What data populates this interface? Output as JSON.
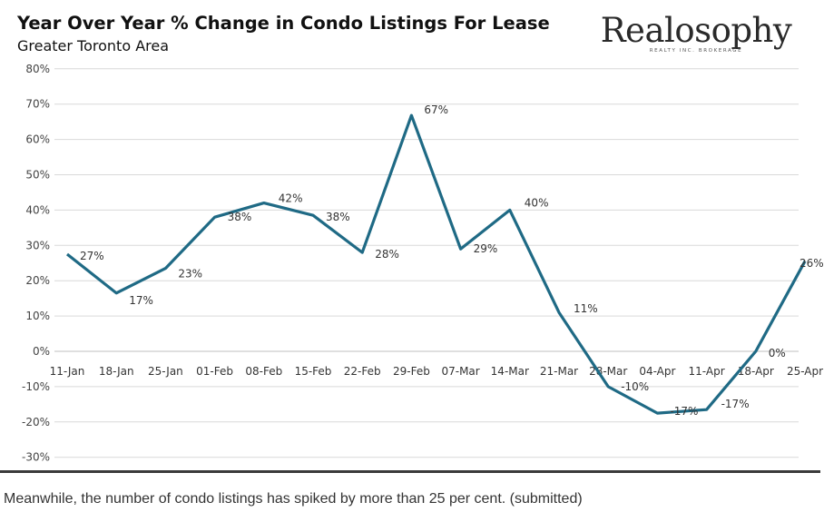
{
  "chart_data": {
    "type": "line",
    "title": "Year Over Year % Change in Condo Listings For Lease",
    "subtitle": "Greater Toronto Area",
    "categories": [
      "11-Jan",
      "18-Jan",
      "25-Jan",
      "01-Feb",
      "08-Feb",
      "15-Feb",
      "22-Feb",
      "29-Feb",
      "07-Mar",
      "14-Mar",
      "21-Mar",
      "28-Mar",
      "04-Apr",
      "11-Apr",
      "18-Apr",
      "25-Apr"
    ],
    "values": [
      27.5,
      16.5,
      23.5,
      38,
      42,
      38.5,
      28,
      66.8,
      29,
      40,
      11,
      -10,
      -17.5,
      -16.5,
      0,
      25.5
    ],
    "data_labels": [
      "27%",
      "17%",
      "23%",
      "38%",
      "42%",
      "38%",
      "28%",
      "67%",
      "29%",
      "40%",
      "11%",
      "-10%",
      "-17%",
      "-17%",
      "0%",
      "26%"
    ],
    "yticks": [
      "80%",
      "70%",
      "60%",
      "50%",
      "40%",
      "30%",
      "20%",
      "10%",
      "0%",
      "-10%",
      "-20%",
      "-30%"
    ],
    "ylim": [
      -30,
      80
    ],
    "xlabel": "",
    "ylabel": "",
    "grid": true,
    "line_color": "#1f6a85"
  },
  "logo": {
    "name": "Realosophy",
    "tagline": "REALTY INC. BROKERAGE"
  },
  "caption": "Meanwhile, the number of condo listings has spiked by more than 25 per cent. (submitted)"
}
